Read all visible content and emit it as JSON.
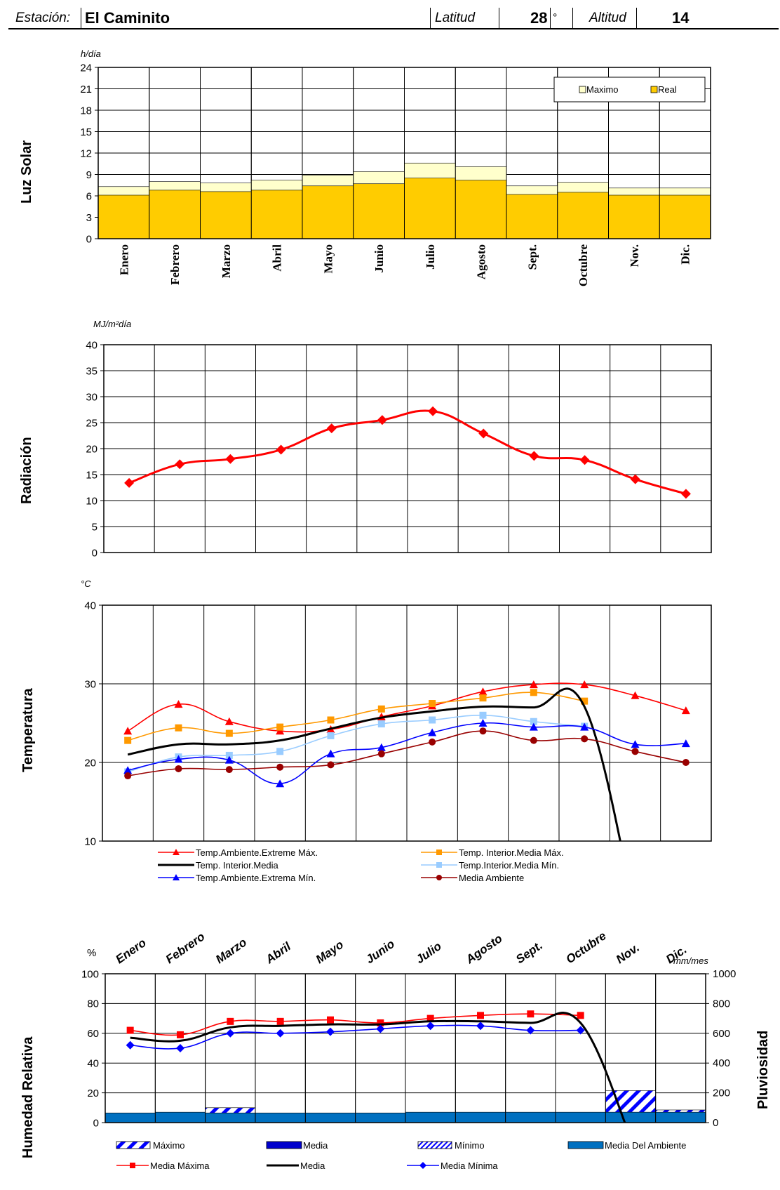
{
  "header": {
    "station_label": "Estación:",
    "station_name": "El Caminito",
    "lat_label": "Latitud",
    "lat_value": "28",
    "lat_unit": "°",
    "alt_label": "Altitud",
    "alt_value": "14"
  },
  "chart_data": [
    {
      "type": "bar",
      "side_label": "Luz Solar",
      "unit": "h/día",
      "categories": [
        "Enero",
        "Febrero",
        "Marzo",
        "Abril",
        "Mayo",
        "Junio",
        "Julio",
        "Agosto",
        "Sept.",
        "Octubre",
        "Nov.",
        "Dic."
      ],
      "ylim": [
        0,
        24
      ],
      "yticks": [
        0,
        3,
        6,
        9,
        12,
        15,
        18,
        21,
        24
      ],
      "series": [
        {
          "name": "Maximo",
          "color": "#ffffcc",
          "values": [
            7.3,
            8.0,
            7.8,
            8.2,
            8.9,
            9.4,
            10.6,
            10.1,
            7.4,
            7.9,
            7.1,
            7.1
          ]
        },
        {
          "name": "Real",
          "color": "#ffcc00",
          "values": [
            6.1,
            6.8,
            6.6,
            6.8,
            7.4,
            7.7,
            8.5,
            8.2,
            6.2,
            6.5,
            6.1,
            6.1
          ]
        }
      ],
      "legend": "top-right",
      "grid": true
    },
    {
      "type": "line",
      "side_label": "Radiación",
      "unit": "MJ/m²día",
      "categories": [
        "Enero",
        "Febrero",
        "Marzo",
        "Abril",
        "Mayo",
        "Junio",
        "Julio",
        "Agosto",
        "Sept.",
        "Octubre",
        "Nov.",
        "Dic."
      ],
      "ylim": [
        0,
        40
      ],
      "yticks": [
        0,
        5,
        10,
        15,
        20,
        25,
        30,
        35,
        40
      ],
      "series": [
        {
          "color": "#ff0000",
          "values": [
            13.4,
            17.0,
            18.0,
            19.8,
            23.9,
            25.5,
            27.2,
            22.9,
            18.6,
            17.8,
            14.1,
            11.3
          ]
        }
      ],
      "grid": true
    },
    {
      "type": "line",
      "side_label": "Temperatura",
      "unit": "°C",
      "categories": [
        "Enero",
        "Febrero",
        "Marzo",
        "Abril",
        "Mayo",
        "Junio",
        "Julio",
        "Agosto",
        "Sept.",
        "Octubre",
        "Nov.",
        "Dic."
      ],
      "ylim": [
        10,
        40
      ],
      "yticks": [
        10,
        20,
        30,
        40
      ],
      "series": [
        {
          "name": "Temp.Ambiente.Extreme Máx.",
          "color": "#ff0000",
          "marker": "triangle",
          "values": [
            24.0,
            27.4,
            25.2,
            24.0,
            24.2,
            25.8,
            27.2,
            29.0,
            29.9,
            29.9,
            28.5,
            26.6
          ]
        },
        {
          "name": "Temp. Interior.Media Máx.",
          "color": "#ff9900",
          "marker": "square",
          "values": [
            22.8,
            24.4,
            23.7,
            24.5,
            25.4,
            26.8,
            27.5,
            28.2,
            28.9,
            27.8,
            null,
            null
          ]
        },
        {
          "name": "Temp. Interior.Media",
          "color": "#000000",
          "marker": "none",
          "values": [
            21.0,
            22.3,
            22.3,
            22.8,
            24.3,
            25.7,
            26.5,
            27.1,
            27.0,
            27.1,
            1.0,
            null
          ]
        },
        {
          "name": "Temp.Interior.Media Mín.",
          "color": "#99ccff",
          "marker": "square",
          "values": [
            18.8,
            20.7,
            20.9,
            21.4,
            23.4,
            24.9,
            25.4,
            26.0,
            25.2,
            24.6,
            null,
            null
          ]
        },
        {
          "name": "Temp.Ambiente.Extrema Mín.",
          "color": "#0000ff",
          "marker": "triangle",
          "values": [
            19.0,
            20.4,
            20.3,
            17.3,
            21.1,
            21.9,
            23.8,
            25.0,
            24.5,
            24.5,
            22.3,
            22.4
          ]
        },
        {
          "name": "Media Ambiente",
          "color": "#990000",
          "marker": "circle",
          "values": [
            18.3,
            19.2,
            19.1,
            19.4,
            19.7,
            21.1,
            22.6,
            24.0,
            22.8,
            23.0,
            21.4,
            20.0
          ]
        }
      ],
      "grid": true
    },
    {
      "type": "bar",
      "side_label": "Humedad Relativa",
      "side_label_right": "Pluviosidad",
      "unit": "%",
      "unit_right": "mm/mes",
      "categories": [
        "Enero",
        "Febrero",
        "Marzo",
        "Abril",
        "Mayo",
        "Junio",
        "Julio",
        "Agosto",
        "Sept.",
        "Octubre",
        "Nov.",
        "Dic."
      ],
      "ylim": [
        0,
        100
      ],
      "yticks": [
        0,
        20,
        40,
        60,
        80,
        100
      ],
      "ylim_right": [
        0,
        1000
      ],
      "yticks_right": [
        0,
        200,
        400,
        600,
        800,
        1000
      ],
      "bar_series": [
        {
          "name": "Máximo",
          "color": "#0000ff",
          "pattern": "hatch-wide",
          "values": [
            null,
            null,
            100,
            null,
            null,
            null,
            null,
            null,
            null,
            null,
            215,
            85
          ]
        },
        {
          "name": "Media",
          "color": "#0000cc",
          "pattern": "solid",
          "values": [
            null,
            null,
            null,
            null,
            null,
            null,
            null,
            null,
            null,
            null,
            null,
            null
          ]
        },
        {
          "name": "Mínimo",
          "color": "#0000ff",
          "pattern": "hatch-narrow",
          "values": [
            null,
            null,
            null,
            null,
            null,
            null,
            null,
            null,
            null,
            null,
            null,
            null
          ]
        },
        {
          "name": "Media Del Ambiente",
          "color": "#0070c0",
          "pattern": "solid",
          "values": [
            65,
            70,
            65,
            65,
            65,
            65,
            70,
            70,
            70,
            70,
            70,
            70
          ]
        }
      ],
      "line_series": [
        {
          "name": "Media Máxima",
          "color": "#ff0000",
          "marker": "square",
          "values": [
            62,
            59,
            68,
            68,
            69,
            67,
            70,
            72,
            73,
            72,
            null,
            null
          ]
        },
        {
          "name": "Media",
          "color": "#000000",
          "marker": "none",
          "values": [
            57,
            55,
            64,
            65,
            66,
            66,
            68,
            68,
            67,
            67,
            -10,
            null
          ]
        },
        {
          "name": "Media Mínima",
          "color": "#0000ff",
          "marker": "diamond",
          "values": [
            52,
            50,
            60,
            60,
            61,
            63,
            65,
            65,
            62,
            62,
            null,
            null
          ]
        }
      ],
      "grid": true
    }
  ]
}
